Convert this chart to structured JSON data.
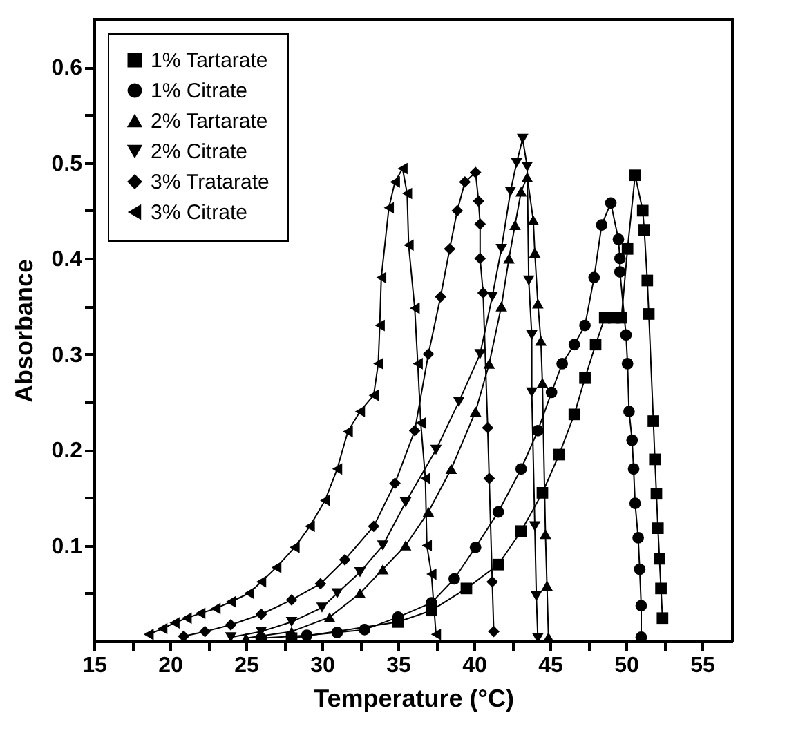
{
  "chart_data": {
    "type": "line",
    "xlabel": "Temperature (°C)",
    "ylabel": "Absorbance",
    "xlim": [
      15,
      57
    ],
    "ylim": [
      0,
      0.65
    ],
    "xticks": [
      15,
      {
        "value": 17.5,
        "label": null
      },
      20,
      {
        "value": 22.5,
        "label": null
      },
      25,
      {
        "value": 27.5,
        "label": null
      },
      30,
      {
        "value": 32.5,
        "label": null
      },
      35,
      {
        "value": 37.5,
        "label": null
      },
      40,
      {
        "value": 42.5,
        "label": null
      },
      45,
      {
        "value": 47.5,
        "label": null
      },
      50,
      {
        "value": 52.5,
        "label": null
      },
      55
    ],
    "yticks": [
      {
        "value": 0.05,
        "label": null
      },
      0.1,
      {
        "value": 0.15,
        "label": null
      },
      0.2,
      {
        "value": 0.25,
        "label": null
      },
      0.3,
      {
        "value": 0.35,
        "label": null
      },
      0.4,
      {
        "value": 0.45,
        "label": null
      },
      0.5,
      {
        "value": 0.55,
        "label": null
      },
      0.6
    ],
    "grid": false,
    "legend": "top left",
    "line_style": "solid",
    "series": [
      {
        "name": "1% Tartarate",
        "color": "#000000",
        "marker": "square",
        "x": [
          28,
          35,
          37.2,
          39.5,
          41.6,
          43.1,
          44.5,
          45.6,
          46.6,
          47.3,
          48,
          48.6,
          49.2,
          49.7,
          50.1,
          50.6,
          51.1,
          51.2,
          51.4,
          51.5,
          51.8,
          51.9,
          52,
          52.1,
          52.2,
          52.3,
          52.4
        ],
        "values": [
          0.003,
          0.02,
          0.032,
          0.055,
          0.08,
          0.115,
          0.155,
          0.195,
          0.237,
          0.275,
          0.31,
          0.338,
          0.338,
          0.338,
          0.41,
          0.487,
          0.45,
          0.43,
          0.377,
          0.342,
          0.23,
          0.19,
          0.154,
          0.118,
          0.086,
          0.055,
          0.024
        ]
      },
      {
        "name": "1% Citrate",
        "color": "#000000",
        "marker": "circle",
        "x": [
          26,
          29,
          31,
          32.8,
          35,
          37.2,
          38.7,
          40.1,
          41.6,
          43.1,
          44.2,
          45.1,
          45.8,
          46.6,
          47.3,
          47.9,
          48.4,
          49,
          49.5,
          49.6,
          49.6,
          50,
          50.1,
          50.2,
          50.4,
          50.5,
          50.6,
          50.8,
          50.9,
          51,
          51
        ],
        "values": [
          0.003,
          0.006,
          0.009,
          0.012,
          0.025,
          0.04,
          0.065,
          0.098,
          0.135,
          0.18,
          0.22,
          0.26,
          0.29,
          0.31,
          0.33,
          0.38,
          0.435,
          0.458,
          0.42,
          0.4,
          0.386,
          0.32,
          0.29,
          0.24,
          0.21,
          0.18,
          0.144,
          0.108,
          0.075,
          0.037,
          0.004
        ]
      },
      {
        "name": "2% Tartarate",
        "color": "#000000",
        "marker": "triangle",
        "x": [
          25,
          28,
          30.5,
          32.5,
          34,
          35.5,
          37,
          38.5,
          40.1,
          41,
          41.8,
          42.3,
          42.7,
          43.1,
          43.5,
          43.9,
          44,
          44.2,
          44.4,
          44.5,
          44.7,
          44.8,
          44.9
        ],
        "values": [
          0.003,
          0.01,
          0.025,
          0.05,
          0.075,
          0.1,
          0.135,
          0.18,
          0.24,
          0.29,
          0.35,
          0.4,
          0.435,
          0.47,
          0.485,
          0.44,
          0.406,
          0.353,
          0.314,
          0.27,
          0.112,
          0.058,
          0.004
        ]
      },
      {
        "name": "2% Citrate",
        "color": "#000000",
        "marker": "triangle-down",
        "x": [
          24,
          26,
          28,
          30,
          31,
          32.5,
          34,
          35.5,
          37.5,
          39,
          40.4,
          41.2,
          41.8,
          42.4,
          42.8,
          43.2,
          43.5,
          43.6,
          43.8,
          43.8,
          44,
          44.1,
          44.2
        ],
        "values": [
          0.004,
          0.01,
          0.02,
          0.035,
          0.05,
          0.072,
          0.1,
          0.145,
          0.2,
          0.25,
          0.3,
          0.36,
          0.41,
          0.47,
          0.5,
          0.525,
          0.496,
          0.377,
          0.32,
          0.26,
          0.12,
          0.047,
          0.003
        ]
      },
      {
        "name": "3% Tratarate",
        "color": "#000000",
        "marker": "diamond",
        "x": [
          20.9,
          22.3,
          24,
          26,
          28,
          29.9,
          31.5,
          33.4,
          34.8,
          36.1,
          37,
          37.8,
          38.4,
          38.9,
          39.4,
          40.1,
          40.3,
          40.4,
          40.4,
          40.6,
          40.9,
          41,
          41.2,
          41.3
        ],
        "values": [
          0.005,
          0.01,
          0.017,
          0.028,
          0.043,
          0.06,
          0.085,
          0.12,
          0.165,
          0.22,
          0.3,
          0.36,
          0.41,
          0.45,
          0.48,
          0.49,
          0.46,
          0.436,
          0.4,
          0.364,
          0.223,
          0.17,
          0.062,
          0.01
        ]
      },
      {
        "name": "3% Citrate",
        "color": "#000000",
        "marker": "triangle-left",
        "x": [
          18.6,
          19.5,
          20.3,
          21.1,
          22,
          23,
          24,
          25.2,
          26,
          27,
          28.2,
          29.2,
          30.2,
          31,
          31.7,
          32.5,
          33.4,
          33.7,
          33.8,
          33.9,
          34.4,
          34.8,
          35.3,
          35.6,
          35.7,
          36.1,
          36.3,
          36.5,
          36.8,
          36.9,
          37.2,
          37.5
        ],
        "values": [
          0.007,
          0.013,
          0.019,
          0.024,
          0.029,
          0.034,
          0.041,
          0.05,
          0.062,
          0.077,
          0.098,
          0.12,
          0.147,
          0.18,
          0.219,
          0.24,
          0.257,
          0.29,
          0.33,
          0.38,
          0.453,
          0.48,
          0.494,
          0.468,
          0.414,
          0.348,
          0.29,
          0.228,
          0.17,
          0.1,
          0.07,
          0.007
        ]
      }
    ]
  }
}
